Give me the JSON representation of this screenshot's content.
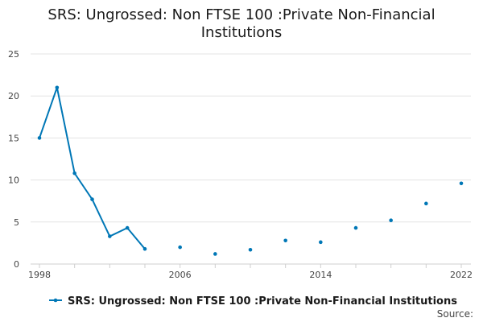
{
  "chart_data": {
    "type": "line",
    "title": "SRS: Ungrossed: Non FTSE 100 :Private Non-Financial Institutions",
    "title_lines": [
      "SRS: Ungrossed: Non FTSE 100 :Private Non-Financial",
      "Institutions"
    ],
    "xlabel": "",
    "ylabel": "",
    "x_tick_labels": [
      "1998",
      "2006",
      "2014",
      "2022"
    ],
    "x_ticks": [
      1998,
      2000,
      2002,
      2004,
      2006,
      2008,
      2010,
      2012,
      2014,
      2016,
      2018,
      2020,
      2022
    ],
    "y_tick_labels": [
      "0",
      "5",
      "10",
      "15",
      "20",
      "25"
    ],
    "xlim": [
      1998,
      2022
    ],
    "ylim": [
      0,
      25
    ],
    "grid": true,
    "legend_position": "bottom",
    "series": [
      {
        "name": "SRS: Ungrossed: Non FTSE 100 :Private Non-Financial Institutions",
        "color": "#0077b6",
        "points": [
          {
            "x": 1998,
            "y": 15.0
          },
          {
            "x": 1999,
            "y": 21.0
          },
          {
            "x": 2000,
            "y": 10.8
          },
          {
            "x": 2001,
            "y": 7.7
          },
          {
            "x": 2002,
            "y": 3.3
          },
          {
            "x": 2003,
            "y": 4.3
          },
          {
            "x": 2004,
            "y": 1.8
          },
          {
            "x": 2006,
            "y": 2.0
          },
          {
            "x": 2008,
            "y": 1.2
          },
          {
            "x": 2010,
            "y": 1.7
          },
          {
            "x": 2012,
            "y": 2.8
          },
          {
            "x": 2014,
            "y": 2.6
          },
          {
            "x": 2016,
            "y": 4.3
          },
          {
            "x": 2018,
            "y": 5.2
          },
          {
            "x": 2020,
            "y": 7.2
          },
          {
            "x": 2022,
            "y": 9.6
          }
        ]
      }
    ],
    "source_label": "Source:"
  }
}
